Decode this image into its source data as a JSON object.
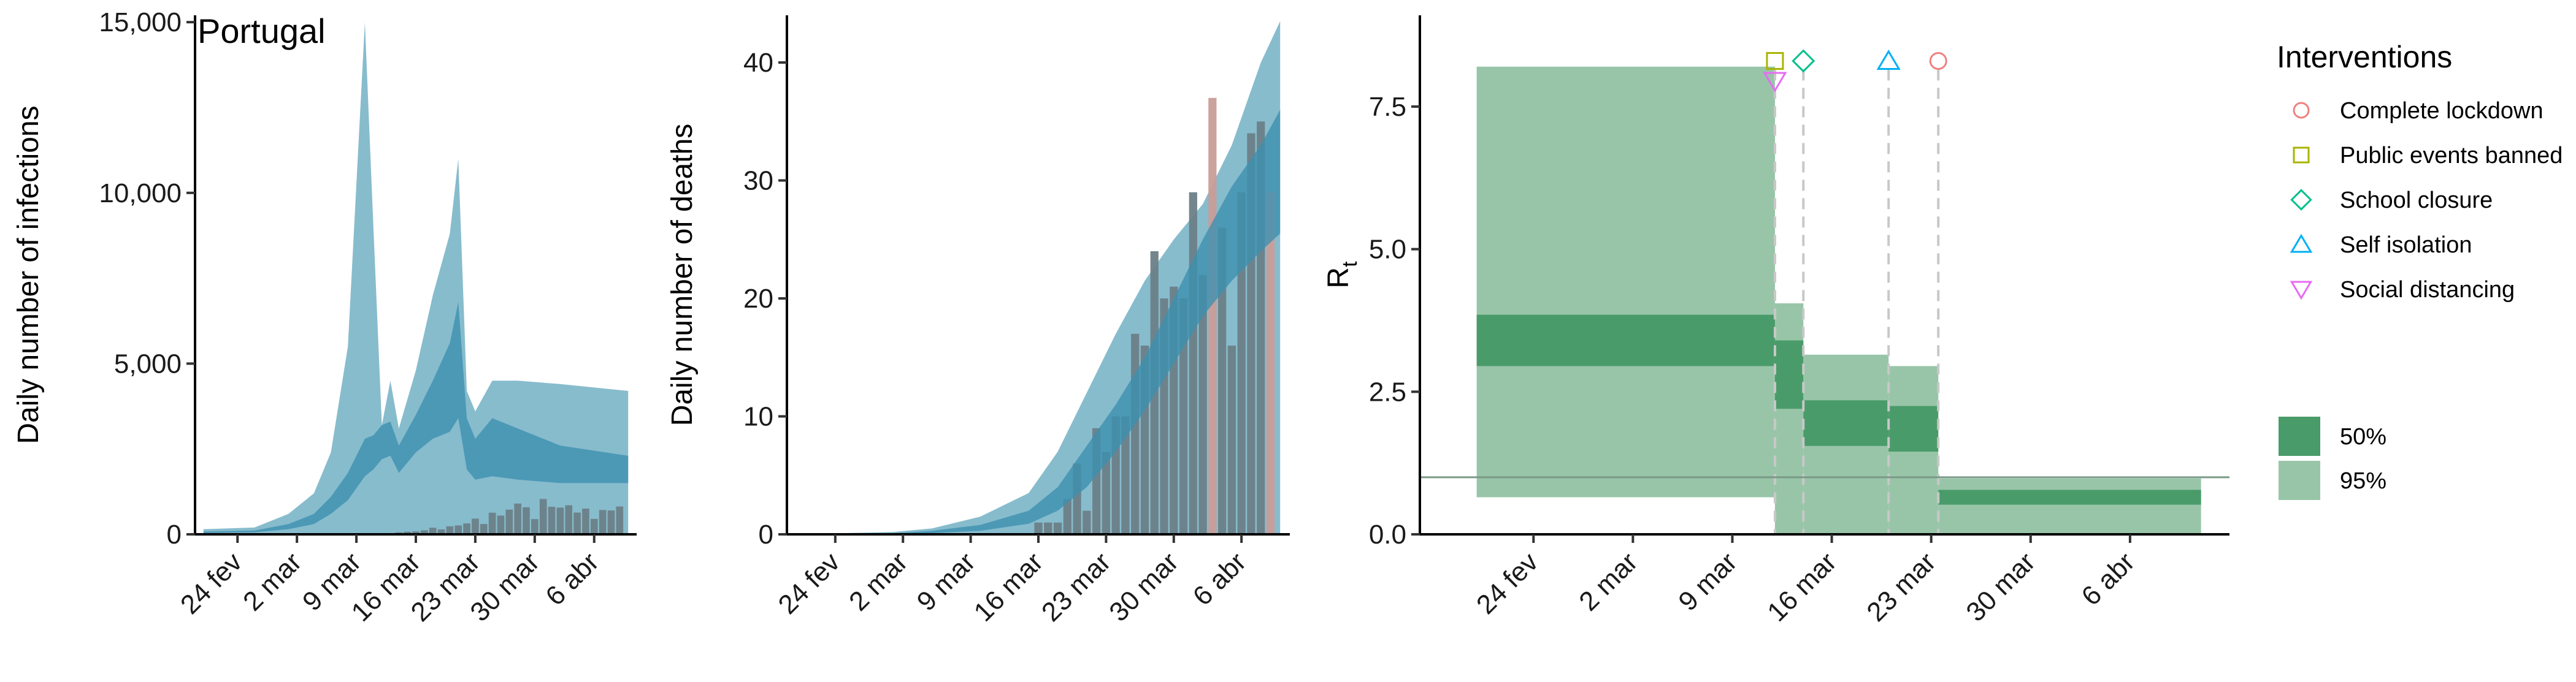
{
  "colors": {
    "infection_band_95": "#87bccd",
    "infection_band_50": "#3b8faf",
    "bar_observed": "#6b7f88",
    "death_bar_last": "#c99d98",
    "rt_band_95": "#98c5a8",
    "rt_band_50": "#4a9b6a",
    "threshold_line": "#7a9a88",
    "lockdown": "#f08080",
    "public_events": "#aab400",
    "school": "#00c08b",
    "self_isolation": "#00b0f6",
    "social_distancing": "#e76bf3"
  },
  "chart_data": [
    {
      "type": "area",
      "title": "Portugal",
      "xlabel": "",
      "ylabel": "Daily number of infections",
      "x_tick_labels": [
        "24 fev",
        "2 mar",
        "9 mar",
        "16 mar",
        "23 mar",
        "30 mar",
        "6 abr"
      ],
      "y_tick_labels": [
        "0",
        "5,000",
        "10,000",
        "15,000"
      ],
      "y_ticks": [
        0,
        5000,
        10000,
        15000
      ],
      "ylim": [
        0,
        15200
      ],
      "x_range": [
        "2020-02-20",
        "2020-04-10"
      ],
      "band_dates": [
        "2020-02-20",
        "2020-02-26",
        "2020-03-01",
        "2020-03-04",
        "2020-03-06",
        "2020-03-08",
        "2020-03-10",
        "2020-03-11",
        "2020-03-12",
        "2020-03-13",
        "2020-03-14",
        "2020-03-16",
        "2020-03-18",
        "2020-03-20",
        "2020-03-21",
        "2020-03-22",
        "2020-03-23",
        "2020-03-25",
        "2020-03-28",
        "2020-04-02",
        "2020-04-10"
      ],
      "ci95_upper": [
        150,
        200,
        600,
        1200,
        2400,
        5500,
        15000,
        9000,
        3200,
        4500,
        3100,
        4800,
        7000,
        8800,
        11000,
        4200,
        3600,
        4500,
        4500,
        4400,
        4200
      ],
      "ci95_lower": [
        0,
        0,
        0,
        0,
        0,
        0,
        0,
        0,
        0,
        0,
        0,
        0,
        0,
        0,
        0,
        0,
        0,
        0,
        0,
        0,
        0
      ],
      "ci50_upper": [
        80,
        110,
        300,
        600,
        1100,
        1800,
        2800,
        2900,
        3200,
        3300,
        2600,
        3500,
        4500,
        5600,
        6800,
        3400,
        2800,
        3400,
        3100,
        2600,
        2300
      ],
      "ci50_lower": [
        40,
        60,
        150,
        300,
        600,
        1000,
        1700,
        1900,
        2200,
        2300,
        1800,
        2400,
        2800,
        3000,
        3400,
        1900,
        1600,
        1700,
        1600,
        1500,
        1500
      ],
      "observed_dates": [
        "2020-03-02",
        "2020-03-03",
        "2020-03-04",
        "2020-03-05",
        "2020-03-06",
        "2020-03-07",
        "2020-03-08",
        "2020-03-09",
        "2020-03-10",
        "2020-03-11",
        "2020-03-12",
        "2020-03-13",
        "2020-03-14",
        "2020-03-15",
        "2020-03-16",
        "2020-03-17",
        "2020-03-18",
        "2020-03-19",
        "2020-03-20",
        "2020-03-21",
        "2020-03-22",
        "2020-03-23",
        "2020-03-24",
        "2020-03-25",
        "2020-03-26",
        "2020-03-27",
        "2020-03-28",
        "2020-03-29",
        "2020-03-30",
        "2020-03-31",
        "2020-04-01",
        "2020-04-02",
        "2020-04-03",
        "2020-04-04",
        "2020-04-05",
        "2020-04-06",
        "2020-04-07",
        "2020-04-08",
        "2020-04-09"
      ],
      "observed_values": [
        2,
        0,
        2,
        3,
        4,
        8,
        9,
        9,
        11,
        18,
        19,
        34,
        57,
        76,
        86,
        117,
        194,
        143,
        235,
        260,
        320,
        460,
        302,
        633,
        549,
        724,
        902,
        792,
        446,
        1035,
        808,
        783,
        852,
        638,
        754,
        452,
        712,
        699,
        815
      ]
    },
    {
      "type": "bar",
      "title": "",
      "xlabel": "",
      "ylabel": "Daily number of deaths",
      "x_tick_labels": [
        "24 fev",
        "2 mar",
        "9 mar",
        "16 mar",
        "23 mar",
        "30 mar",
        "6 abr"
      ],
      "y_tick_labels": [
        "0",
        "10",
        "20",
        "30",
        "40"
      ],
      "y_ticks": [
        0,
        10,
        20,
        30,
        40
      ],
      "ylim": [
        0,
        44
      ],
      "x_range": [
        "2020-02-20",
        "2020-04-10"
      ],
      "band_dates": [
        "2020-02-20",
        "2020-03-01",
        "2020-03-05",
        "2020-03-10",
        "2020-03-15",
        "2020-03-18",
        "2020-03-21",
        "2020-03-24",
        "2020-03-27",
        "2020-03-30",
        "2020-04-02",
        "2020-04-05",
        "2020-04-08",
        "2020-04-10"
      ],
      "ci95_upper": [
        0,
        0.2,
        0.5,
        1.5,
        3.5,
        7,
        12,
        17,
        21.5,
        25,
        28,
        33,
        40,
        43.5
      ],
      "ci95_lower": [
        0,
        0,
        0,
        0,
        0,
        0,
        0,
        0,
        0,
        0,
        0,
        0,
        0,
        0
      ],
      "ci50_upper": [
        0,
        0.1,
        0.3,
        0.8,
        2,
        4,
        7.5,
        11,
        15,
        20,
        25,
        29.5,
        33,
        36
      ],
      "ci50_lower": [
        0,
        0,
        0.1,
        0.3,
        0.9,
        2,
        4,
        7,
        10.5,
        14.5,
        18.5,
        21.5,
        24,
        25.5
      ],
      "observed_dates": [
        "2020-03-16",
        "2020-03-17",
        "2020-03-18",
        "2020-03-19",
        "2020-03-20",
        "2020-03-21",
        "2020-03-22",
        "2020-03-23",
        "2020-03-24",
        "2020-03-25",
        "2020-03-26",
        "2020-03-27",
        "2020-03-28",
        "2020-03-29",
        "2020-03-30",
        "2020-03-31",
        "2020-04-01",
        "2020-04-02",
        "2020-04-03",
        "2020-04-04",
        "2020-04-05",
        "2020-04-06",
        "2020-04-07",
        "2020-04-08",
        "2020-04-09"
      ],
      "observed_values": [
        1,
        1,
        1,
        3,
        6,
        2,
        9,
        7,
        10,
        10,
        17,
        16,
        24,
        20,
        21,
        20,
        29,
        22,
        37,
        26,
        16,
        29,
        34,
        35,
        29
      ],
      "highlighted_dates": [
        "2020-04-03",
        "2020-04-09"
      ]
    },
    {
      "type": "area",
      "title": "",
      "xlabel": "",
      "ylabel": "R",
      "ylabel_subscript": "t",
      "x_tick_labels": [
        "24 fev",
        "2 mar",
        "9 mar",
        "16 mar",
        "23 mar",
        "30 mar",
        "6 abr"
      ],
      "y_tick_labels": [
        "0.0",
        "2.5",
        "5.0",
        "7.5"
      ],
      "y_ticks": [
        0,
        2.5,
        5,
        7.5
      ],
      "ylim": [
        0,
        9.1
      ],
      "x_range": [
        "2020-02-16",
        "2020-04-13"
      ],
      "threshold_value": 1,
      "segments": [
        {
          "start": "2020-02-20",
          "end": "2020-03-12",
          "ci95": [
            0.65,
            8.2
          ],
          "ci50": [
            2.95,
            3.85
          ]
        },
        {
          "start": "2020-03-12",
          "end": "2020-03-14",
          "ci95": [
            0.0,
            4.05
          ],
          "ci50": [
            2.2,
            3.4
          ]
        },
        {
          "start": "2020-03-14",
          "end": "2020-03-20",
          "ci95": [
            0.0,
            3.15
          ],
          "ci50": [
            1.55,
            2.35
          ]
        },
        {
          "start": "2020-03-20",
          "end": "2020-03-23.5",
          "ci95": [
            0.0,
            2.95
          ],
          "ci50": [
            1.45,
            2.25
          ]
        },
        {
          "start": "2020-03-23.5",
          "end": "2020-04-11",
          "ci95": [
            0.0,
            0.98
          ],
          "ci50": [
            0.52,
            0.78
          ]
        }
      ],
      "intervention_lines": [
        "2020-03-12",
        "2020-03-14",
        "2020-03-20",
        "2020-03-23.5"
      ],
      "intervention_markers": [
        {
          "intervention": "Public events banned",
          "date": "2020-03-12",
          "value": 8.3,
          "shape": "square",
          "color": "#aab400"
        },
        {
          "intervention": "Social distancing",
          "date": "2020-03-12",
          "value": 7.95,
          "shape": "triangle-down",
          "color": "#e76bf3"
        },
        {
          "intervention": "School closure",
          "date": "2020-03-14",
          "value": 8.3,
          "shape": "diamond",
          "color": "#00c08b"
        },
        {
          "intervention": "Self isolation",
          "date": "2020-03-20",
          "value": 8.3,
          "shape": "triangle-up",
          "color": "#00b0f6"
        },
        {
          "intervention": "Complete lockdown",
          "date": "2020-03-23.5",
          "value": 8.3,
          "shape": "circle",
          "color": "#f08080"
        }
      ],
      "legend": {
        "title": "Interventions",
        "placement": "right",
        "items": [
          {
            "label": "Complete lockdown",
            "shape": "circle",
            "color": "#f08080"
          },
          {
            "label": "Public events banned",
            "shape": "square",
            "color": "#aab400"
          },
          {
            "label": "School closure",
            "shape": "diamond",
            "color": "#00c08b"
          },
          {
            "label": "Self isolation",
            "shape": "triangle-up",
            "color": "#00b0f6"
          },
          {
            "label": "Social distancing",
            "shape": "triangle-down",
            "color": "#e76bf3"
          }
        ],
        "band_items": [
          {
            "label": "50%",
            "color": "#4a9b6a"
          },
          {
            "label": "95%",
            "color": "#98c5a8"
          }
        ]
      }
    }
  ]
}
